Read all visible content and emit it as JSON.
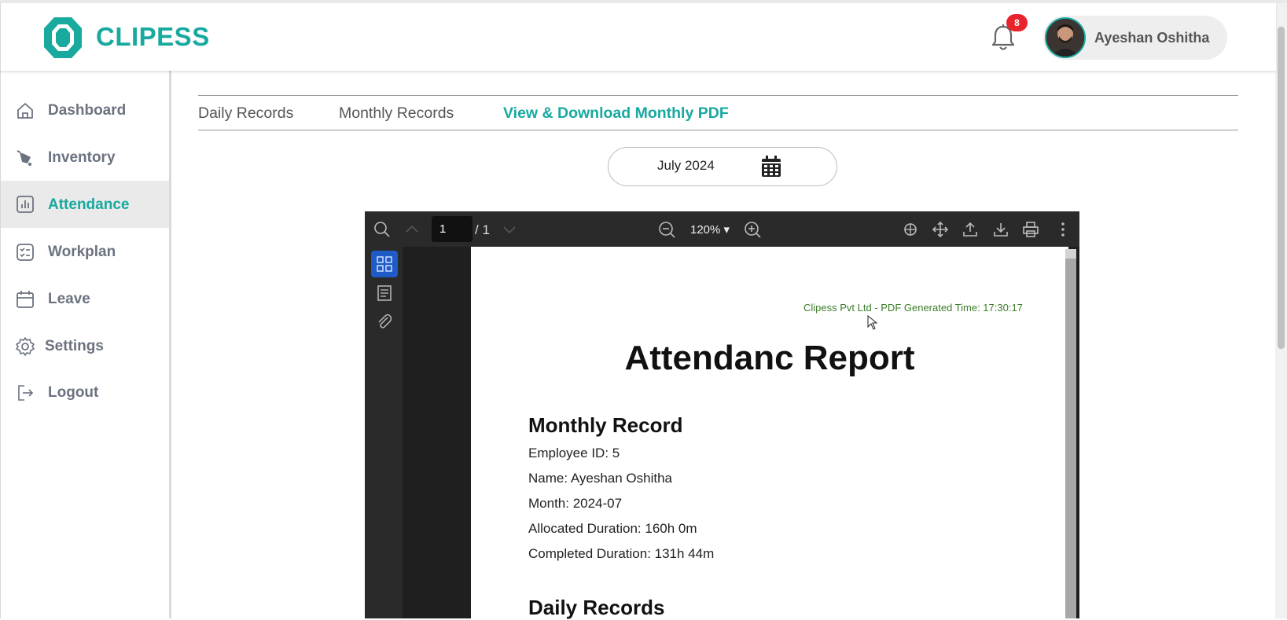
{
  "app": {
    "name": "CLIPESS",
    "brand_color": "#18a99f"
  },
  "header": {
    "notification_count": "8",
    "user_name": "Ayeshan Oshitha"
  },
  "sidebar": {
    "items": [
      {
        "label": "Dashboard",
        "icon": "home-icon"
      },
      {
        "label": "Inventory",
        "icon": "inventory-icon"
      },
      {
        "label": "Attendance",
        "icon": "chart-icon",
        "active": true
      },
      {
        "label": "Workplan",
        "icon": "checklist-icon"
      },
      {
        "label": "Leave",
        "icon": "calendar-icon"
      },
      {
        "label": "Settings",
        "icon": "gear-icon"
      },
      {
        "label": "Logout",
        "icon": "logout-icon"
      }
    ]
  },
  "tabs": [
    {
      "label": "Daily Records"
    },
    {
      "label": "Monthly Records"
    },
    {
      "label": "View & Download Monthly PDF",
      "active": true
    }
  ],
  "month_picker": {
    "value": "July 2024"
  },
  "pdf_viewer": {
    "current_page": "1",
    "total_pages": "/ 1",
    "zoom": "120% ▾"
  },
  "pdf": {
    "generated_line": "Clipess Pvt Ltd - PDF Generated Time: 17:30:17",
    "title": "Attendanc Report",
    "monthly_heading": "Monthly Record",
    "fields": [
      "Employee ID: 5",
      "Name: Ayeshan Oshitha",
      "Month: 2024-07",
      "Allocated Duration: 160h 0m",
      "Completed Duration: 131h 44m"
    ],
    "daily_heading": "Daily Records"
  }
}
